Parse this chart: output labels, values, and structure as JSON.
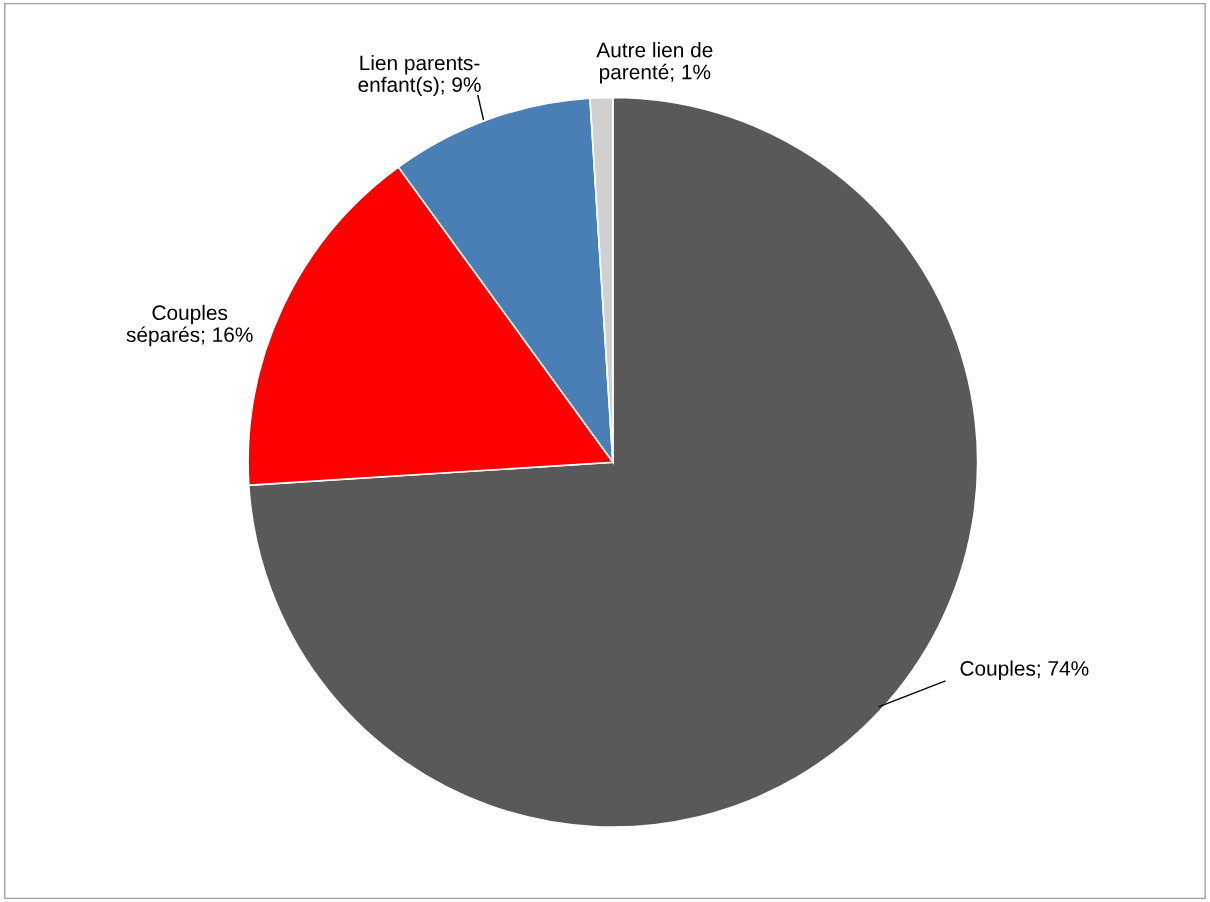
{
  "chart_data": {
    "type": "pie",
    "categories": [
      "Couples",
      "Couples séparés",
      "Lien parents-enfant(s)",
      "Autre lien de parenté"
    ],
    "values": [
      74,
      16,
      9,
      1
    ],
    "colors": [
      "#595959",
      "#ff0000",
      "#4a7fb5",
      "#d0d0d0"
    ],
    "value_labels": [
      "; 74%",
      "; 16%",
      "; 9%",
      "; 1%"
    ],
    "legend": false
  }
}
